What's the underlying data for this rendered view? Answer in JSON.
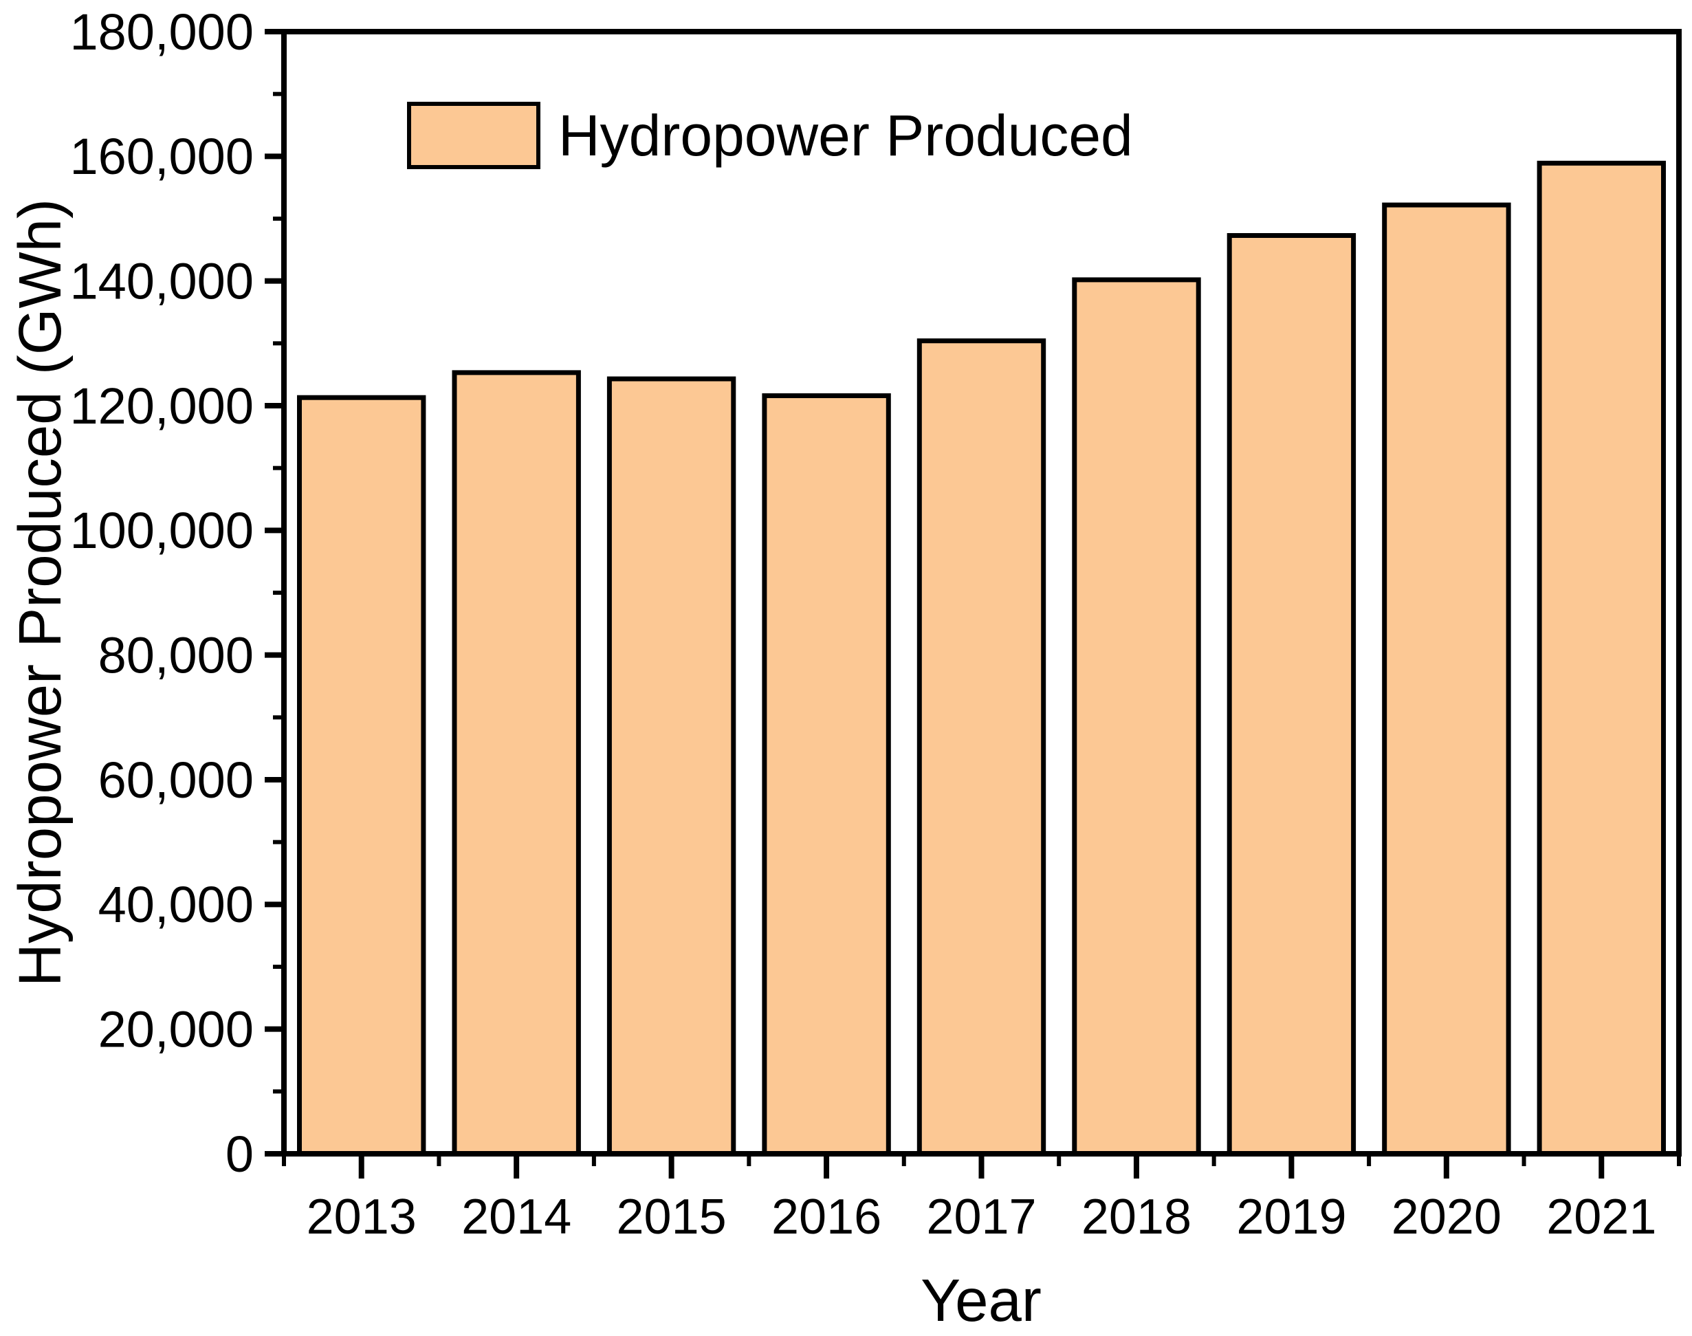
{
  "page": {
    "background_color": "#ffffff"
  },
  "chart_data": {
    "type": "bar",
    "title": "",
    "categories": [
      "2013",
      "2014",
      "2015",
      "2016",
      "2017",
      "2018",
      "2019",
      "2020",
      "2021"
    ],
    "series": [
      {
        "name": "Hydropower Produced",
        "values": [
          121300,
          125300,
          124300,
          121600,
          130400,
          140200,
          147300,
          152200,
          158900
        ]
      }
    ],
    "xlabel": "Year",
    "ylabel": "Hydropower Produced (GWh)",
    "ylim": [
      0,
      180000
    ],
    "y_major_step": 20000,
    "y_minor_step": 10000,
    "y_tick_labels": [
      "0",
      "20,000",
      "40,000",
      "60,000",
      "80,000",
      "100,000",
      "120,000",
      "140,000",
      "160,000",
      "180,000"
    ],
    "x_tick_labels": [
      "2013",
      "2014",
      "2015",
      "2016",
      "2017",
      "2018",
      "2019",
      "2020",
      "2021"
    ],
    "grid": false,
    "legend": {
      "position": "top-left-inside",
      "entries": [
        {
          "label": "Hydropower Produced",
          "swatch_color": "#FCC894"
        }
      ]
    },
    "colors": {
      "bar_fill": "#FCC894",
      "bar_border": "#000000",
      "axis": "#000000",
      "text": "#000000"
    }
  }
}
